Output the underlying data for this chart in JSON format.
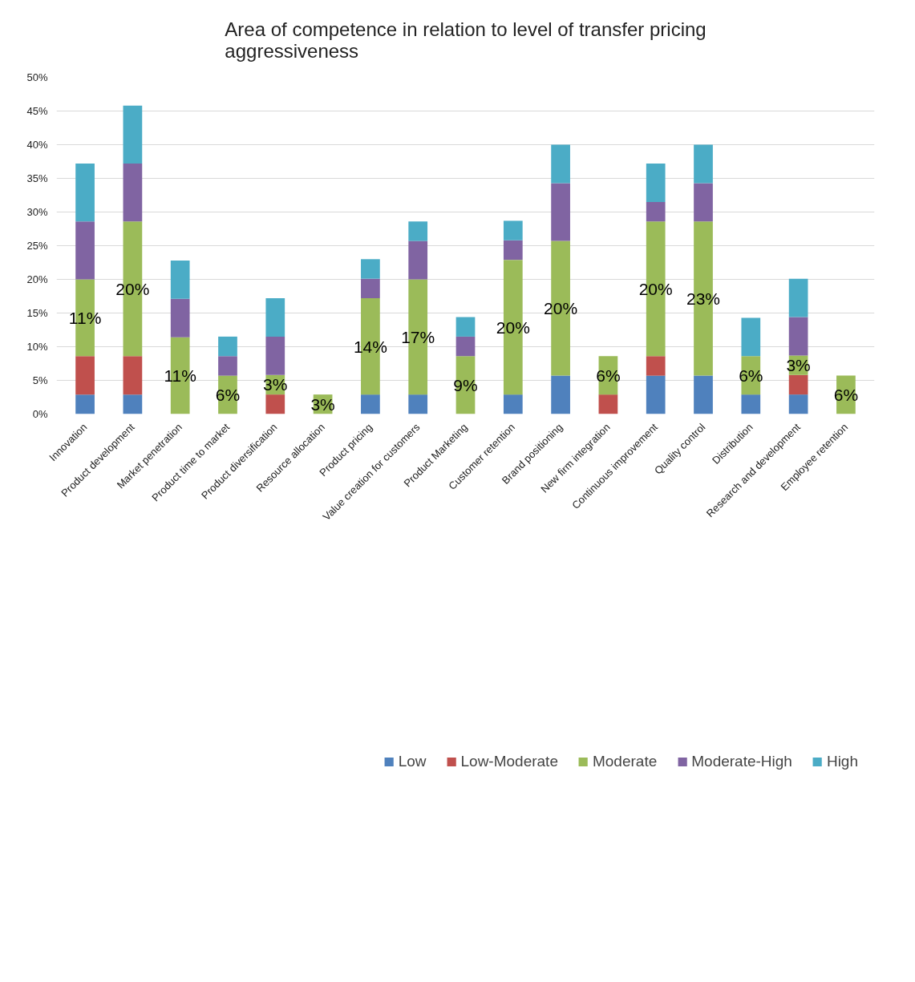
{
  "chart_data": {
    "type": "bar",
    "stacked": true,
    "title": "Area of competence in relation to level of transfer pricing aggressiveness",
    "categories": [
      "Innovation",
      "Product development",
      "Market penetration",
      "Product time to market",
      "Product diversification",
      "Resource allocation",
      "Product pricing",
      "Value creation for customers",
      "Product Marketing",
      "Customer retention",
      "Brand positioning",
      "New firm integration",
      "Continuous improvement",
      "Quality control",
      "Distribution",
      "Research and development",
      "Employee retention"
    ],
    "series": [
      {
        "name": "Low",
        "color": "#4f81bd",
        "values": [
          2.9,
          2.9,
          null,
          null,
          null,
          null,
          2.9,
          2.9,
          null,
          2.9,
          5.7,
          null,
          5.7,
          5.7,
          2.9,
          2.9,
          null
        ]
      },
      {
        "name": "Low-Moderate",
        "color": "#c0504d",
        "values": [
          5.7,
          5.7,
          null,
          null,
          2.9,
          null,
          null,
          null,
          null,
          null,
          null,
          2.9,
          2.9,
          null,
          null,
          2.9,
          null
        ]
      },
      {
        "name": "Moderate",
        "color": "#9bbb59",
        "values": [
          11.4,
          20.0,
          11.4,
          5.7,
          2.9,
          2.9,
          14.3,
          17.1,
          8.6,
          20.0,
          20.0,
          5.7,
          20.0,
          22.9,
          5.7,
          2.9,
          5.7
        ],
        "value_labels": [
          "11%",
          "20%",
          "11%",
          "6%",
          "3%",
          "3%",
          "14%",
          "17%",
          "9%",
          "20%",
          "20%",
          "6%",
          "20%",
          "23%",
          "6%",
          "3%",
          "6%"
        ]
      },
      {
        "name": "Moderate-High",
        "color": "#8064a2",
        "values": [
          8.6,
          8.6,
          5.7,
          2.9,
          5.7,
          null,
          2.9,
          5.7,
          2.9,
          2.9,
          8.6,
          null,
          2.9,
          5.7,
          null,
          5.7,
          null
        ]
      },
      {
        "name": "High",
        "color": "#4bacc6",
        "values": [
          8.6,
          8.6,
          5.7,
          2.9,
          5.7,
          null,
          2.9,
          2.9,
          2.9,
          2.9,
          5.7,
          null,
          5.7,
          5.7,
          5.7,
          5.7,
          null
        ]
      }
    ],
    "ylim": [
      0,
      50
    ],
    "yticks": [
      {
        "value": 0,
        "label": "0%"
      },
      {
        "value": 5,
        "label": "5%"
      },
      {
        "value": 10,
        "label": "10%"
      },
      {
        "value": 15,
        "label": "15%"
      },
      {
        "value": 20,
        "label": "20%"
      },
      {
        "value": 25,
        "label": "25%"
      },
      {
        "value": 30,
        "label": "30%"
      },
      {
        "value": 35,
        "label": "35%"
      },
      {
        "value": 40,
        "label": "40%"
      },
      {
        "value": 45,
        "label": "45%"
      },
      {
        "value": 50,
        "label": "50%"
      }
    ],
    "grid": "y",
    "legend": "bottom"
  }
}
